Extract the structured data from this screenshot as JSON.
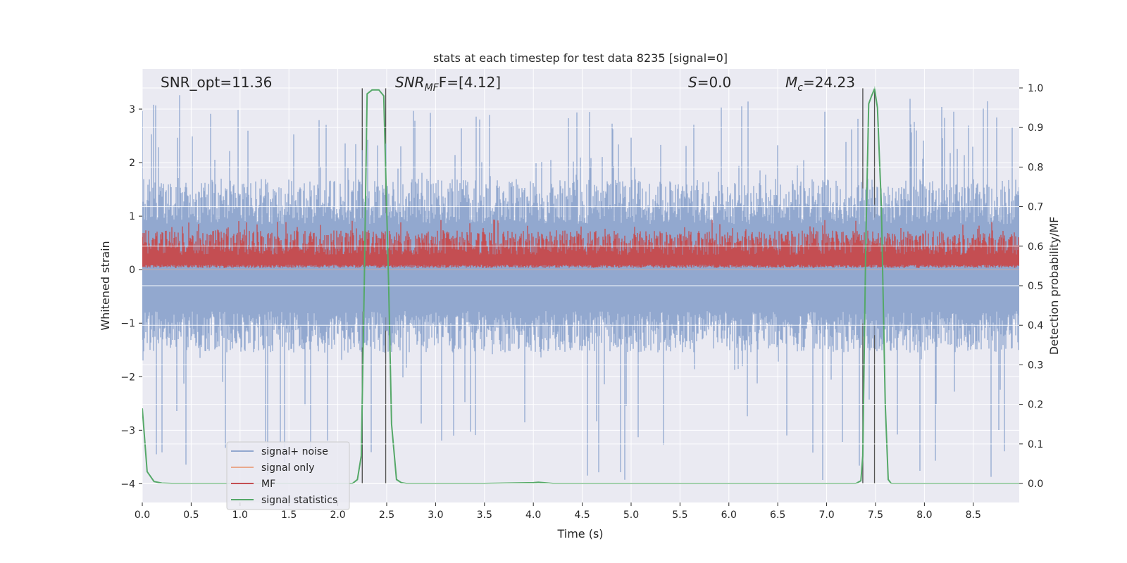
{
  "chart_data": {
    "type": "line",
    "title": "stats at each timestep for test data 8235 [signal=0]",
    "xlabel": "Time (s)",
    "ylabel_left": "Whitened strain",
    "ylabel_right": "Detection probability/MF",
    "xlim": [
      0.0,
      8.97
    ],
    "ylim_left": [
      -4.35,
      3.75
    ],
    "ylim_right": [
      -0.048,
      1.048
    ],
    "grid": true,
    "x_ticks": [
      "0.0",
      "0.5",
      "1.0",
      "1.5",
      "2.0",
      "2.5",
      "3.0",
      "3.5",
      "4.0",
      "4.5",
      "5.0",
      "5.5",
      "6.0",
      "6.5",
      "7.0",
      "7.5",
      "8.0",
      "8.5"
    ],
    "x_tick_values": [
      0.0,
      0.5,
      1.0,
      1.5,
      2.0,
      2.5,
      3.0,
      3.5,
      4.0,
      4.5,
      5.0,
      5.5,
      6.0,
      6.5,
      7.0,
      7.5,
      8.0,
      8.5
    ],
    "y_ticks_left": [
      "−4",
      "−3",
      "−2",
      "−1",
      "0",
      "1",
      "2",
      "3"
    ],
    "y_tick_values_left": [
      -4,
      -3,
      -2,
      -1,
      0,
      1,
      2,
      3
    ],
    "y_ticks_right": [
      "0.0",
      "0.1",
      "0.2",
      "0.3",
      "0.4",
      "0.5",
      "0.6",
      "0.7",
      "0.8",
      "0.9",
      "1.0"
    ],
    "y_tick_values_right": [
      0.0,
      0.1,
      0.2,
      0.3,
      0.4,
      0.5,
      0.6,
      0.7,
      0.8,
      0.9,
      1.0
    ],
    "annotations": {
      "snr_opt": "SNR_opt=11.36",
      "snr_mf_main": "SNR",
      "snr_mf_sub": "MF",
      "snr_mf_rest": "F=[4.12]",
      "s_var": "S",
      "s_rest": "=0.0",
      "mc_main": "M",
      "mc_sub": "c",
      "mc_rest": "=24.23"
    },
    "legend": {
      "location": "lower-left",
      "entries": [
        {
          "label": "signal+ noise",
          "color": "#92a8cf"
        },
        {
          "label": "signal only",
          "color": "#e9a88c"
        },
        {
          "label": "MF",
          "color": "#c44e52"
        },
        {
          "label": "signal statistics",
          "color": "#55a868"
        }
      ]
    },
    "vertical_lines_x": [
      2.25,
      2.49,
      7.37,
      7.49
    ],
    "series": [
      {
        "name": "signal+ noise",
        "axis": "left",
        "color": "#92a8cf",
        "envelope": {
          "typical_max": 1.7,
          "typical_min": -1.55,
          "spike_max": 3.3,
          "spike_min": -4.0
        }
      },
      {
        "name": "signal only",
        "axis": "left",
        "color": "#e9a88c",
        "values": "flat near 0"
      },
      {
        "name": "MF",
        "axis": "right",
        "color": "#c44e52",
        "envelope": {
          "base": 0.545,
          "typical_max": 0.64,
          "spike_max": 0.67,
          "min": 0.545
        }
      },
      {
        "name": "signal statistics",
        "axis": "right",
        "color": "#55a868",
        "x": [
          0.0,
          0.05,
          0.12,
          0.2,
          0.3,
          0.5,
          1.0,
          1.5,
          2.0,
          2.15,
          2.2,
          2.24,
          2.27,
          2.3,
          2.35,
          2.42,
          2.47,
          2.52,
          2.55,
          2.6,
          2.65,
          2.7,
          3.0,
          3.5,
          4.0,
          4.05,
          4.2,
          4.5,
          5.0,
          5.5,
          6.0,
          6.5,
          7.0,
          7.3,
          7.35,
          7.37,
          7.4,
          7.43,
          7.46,
          7.49,
          7.52,
          7.56,
          7.6,
          7.63,
          7.66,
          7.7,
          8.0,
          8.5,
          8.97
        ],
        "y": [
          0.19,
          0.03,
          0.005,
          0.001,
          0.0,
          0.0,
          0.0,
          0.0,
          0.0,
          0.0,
          0.01,
          0.07,
          0.5,
          0.985,
          0.995,
          0.995,
          0.98,
          0.5,
          0.15,
          0.01,
          0.002,
          0.0,
          0.0,
          0.0,
          0.002,
          0.003,
          0.0,
          0.0,
          0.0,
          0.0,
          0.0,
          0.0,
          0.0,
          0.0,
          0.007,
          0.07,
          0.6,
          0.96,
          0.98,
          0.998,
          0.95,
          0.7,
          0.2,
          0.01,
          0.0,
          0.0,
          0.0,
          0.0,
          0.0
        ]
      }
    ]
  }
}
